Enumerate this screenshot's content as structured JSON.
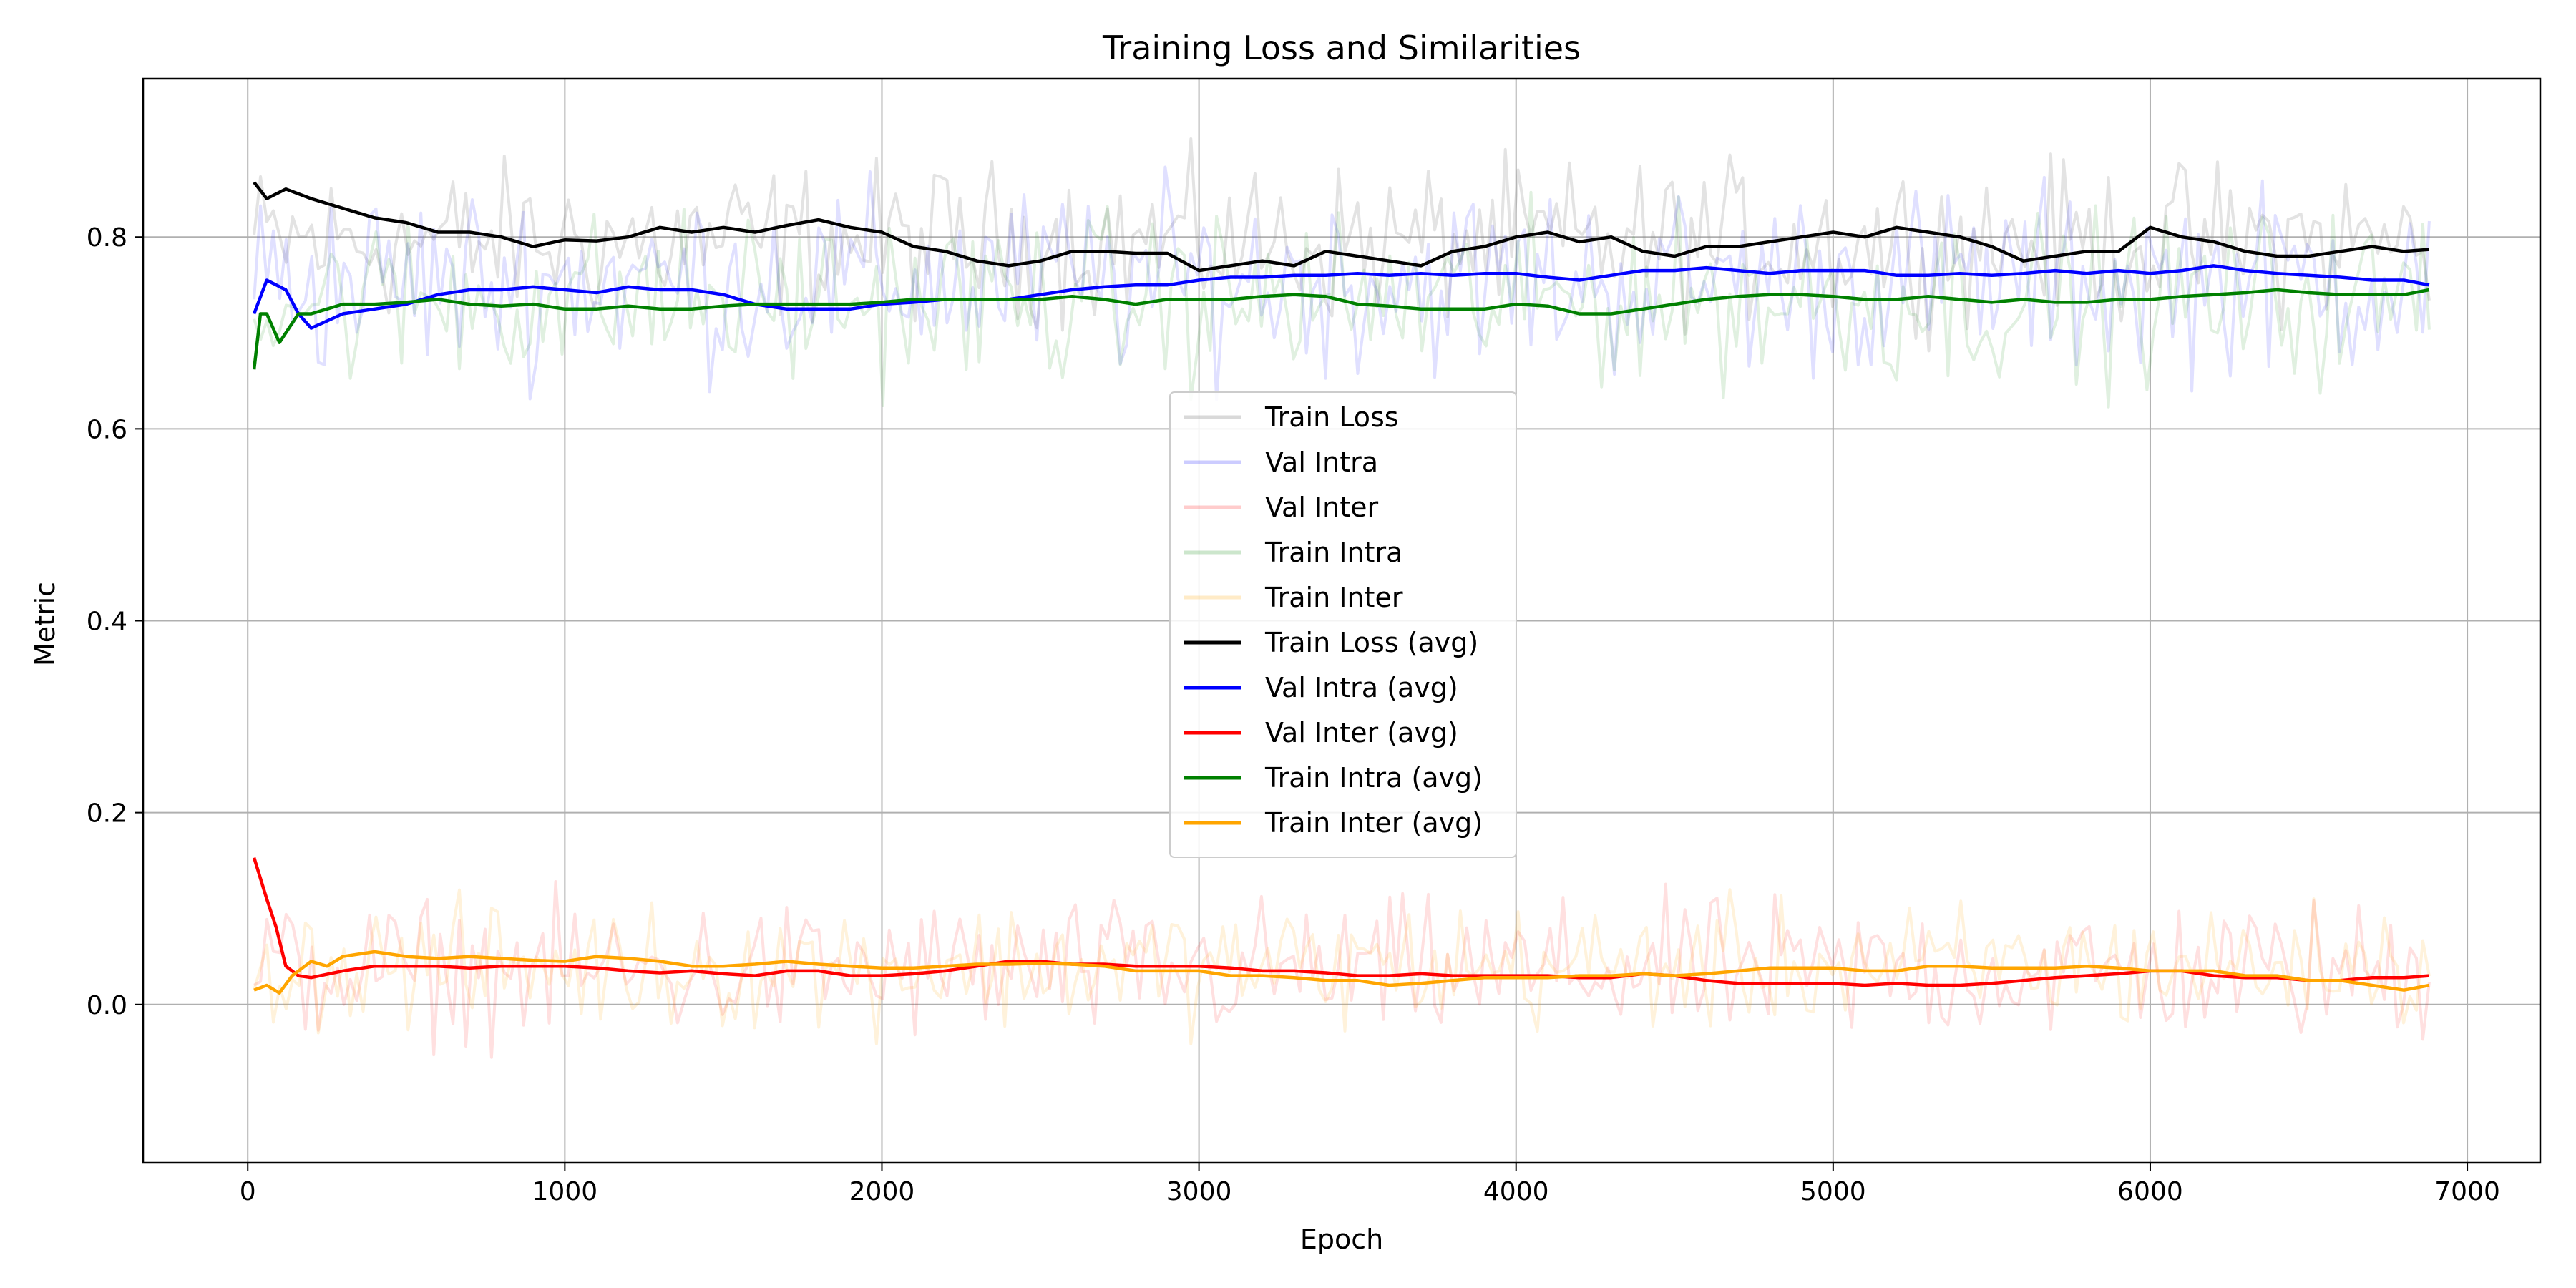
{
  "chart_data": {
    "type": "line",
    "title": "Training Loss and Similarities",
    "xlabel": "Epoch",
    "ylabel": "Metric",
    "xlim": [
      -330,
      7230
    ],
    "ylim": [
      -0.165,
      0.965
    ],
    "xticks": [
      0,
      1000,
      2000,
      3000,
      4000,
      5000,
      6000,
      7000
    ],
    "yticks": [
      0.0,
      0.2,
      0.4,
      0.6,
      0.8
    ],
    "xtick_labels": [
      "0",
      "1000",
      "2000",
      "3000",
      "4000",
      "5000",
      "6000",
      "7000"
    ],
    "ytick_labels": [
      "0.0",
      "0.2",
      "0.4",
      "0.6",
      "0.8"
    ],
    "grid": true,
    "legend_position": "center",
    "x_start": 20,
    "x_end": 6880,
    "raw_series": [
      {
        "name": "Train Loss",
        "color": "#808080",
        "opacity": 0.22,
        "center": 0.795,
        "spread": 0.05,
        "min": 0.65,
        "max": 0.92
      },
      {
        "name": "Val Intra",
        "color": "#0000ff",
        "opacity": 0.12,
        "center": 0.755,
        "spread": 0.06,
        "min": 0.54,
        "max": 0.89
      },
      {
        "name": "Val Inter",
        "color": "#ff0000",
        "opacity": 0.12,
        "center": 0.035,
        "spread": 0.045,
        "min": -0.1,
        "max": 0.18
      },
      {
        "name": "Train Intra",
        "color": "#008000",
        "opacity": 0.12,
        "center": 0.735,
        "spread": 0.055,
        "min": 0.56,
        "max": 0.88
      },
      {
        "name": "Train Inter",
        "color": "#ffa500",
        "opacity": 0.14,
        "center": 0.04,
        "spread": 0.04,
        "min": -0.11,
        "max": 0.23
      }
    ],
    "series": [
      {
        "name": "Train Loss (avg)",
        "color": "#000000",
        "x": [
          20,
          60,
          120,
          200,
          300,
          400,
          500,
          600,
          700,
          800,
          900,
          1000,
          1100,
          1200,
          1300,
          1400,
          1500,
          1600,
          1700,
          1800,
          1900,
          2000,
          2100,
          2200,
          2300,
          2400,
          2500,
          2600,
          2700,
          2800,
          2900,
          3000,
          3100,
          3200,
          3300,
          3400,
          3500,
          3600,
          3700,
          3800,
          3900,
          4000,
          4100,
          4200,
          4300,
          4400,
          4500,
          4600,
          4700,
          4800,
          4900,
          5000,
          5100,
          5200,
          5300,
          5400,
          5500,
          5600,
          5700,
          5800,
          5900,
          6000,
          6100,
          6200,
          6300,
          6400,
          6500,
          6600,
          6700,
          6800,
          6880
        ],
        "values": [
          0.857,
          0.84,
          0.85,
          0.84,
          0.83,
          0.82,
          0.815,
          0.805,
          0.805,
          0.8,
          0.79,
          0.797,
          0.796,
          0.8,
          0.81,
          0.805,
          0.81,
          0.805,
          0.812,
          0.818,
          0.81,
          0.805,
          0.79,
          0.785,
          0.775,
          0.77,
          0.775,
          0.785,
          0.785,
          0.783,
          0.783,
          0.765,
          0.77,
          0.775,
          0.77,
          0.785,
          0.78,
          0.775,
          0.77,
          0.785,
          0.79,
          0.8,
          0.805,
          0.795,
          0.8,
          0.785,
          0.78,
          0.79,
          0.79,
          0.795,
          0.8,
          0.805,
          0.8,
          0.81,
          0.805,
          0.8,
          0.79,
          0.775,
          0.78,
          0.785,
          0.785,
          0.81,
          0.8,
          0.795,
          0.785,
          0.78,
          0.78,
          0.785,
          0.79,
          0.785,
          0.787
        ]
      },
      {
        "name": "Val Intra (avg)",
        "color": "#0000ff",
        "x": [
          20,
          60,
          120,
          160,
          200,
          300,
          400,
          500,
          600,
          700,
          800,
          900,
          1000,
          1100,
          1200,
          1300,
          1400,
          1500,
          1600,
          1700,
          1800,
          1900,
          2000,
          2100,
          2200,
          2300,
          2400,
          2500,
          2600,
          2700,
          2800,
          2900,
          3000,
          3100,
          3200,
          3300,
          3400,
          3500,
          3600,
          3700,
          3800,
          3900,
          4000,
          4100,
          4200,
          4300,
          4400,
          4500,
          4600,
          4700,
          4800,
          4900,
          5000,
          5100,
          5200,
          5300,
          5400,
          5500,
          5600,
          5700,
          5800,
          5900,
          6000,
          6100,
          6200,
          6300,
          6400,
          6500,
          6600,
          6700,
          6800,
          6880
        ],
        "values": [
          0.72,
          0.755,
          0.745,
          0.72,
          0.705,
          0.72,
          0.725,
          0.73,
          0.74,
          0.745,
          0.745,
          0.748,
          0.745,
          0.742,
          0.748,
          0.745,
          0.745,
          0.74,
          0.73,
          0.725,
          0.725,
          0.725,
          0.73,
          0.732,
          0.735,
          0.735,
          0.735,
          0.74,
          0.745,
          0.748,
          0.75,
          0.75,
          0.755,
          0.758,
          0.758,
          0.76,
          0.76,
          0.762,
          0.76,
          0.762,
          0.76,
          0.762,
          0.762,
          0.758,
          0.755,
          0.76,
          0.765,
          0.765,
          0.768,
          0.765,
          0.762,
          0.765,
          0.765,
          0.765,
          0.76,
          0.76,
          0.762,
          0.76,
          0.762,
          0.765,
          0.762,
          0.765,
          0.762,
          0.765,
          0.77,
          0.765,
          0.762,
          0.76,
          0.758,
          0.755,
          0.755,
          0.75
        ]
      },
      {
        "name": "Val Inter (avg)",
        "color": "#ff0000",
        "x": [
          20,
          60,
          90,
          120,
          160,
          200,
          300,
          400,
          500,
          600,
          700,
          800,
          900,
          1000,
          1100,
          1200,
          1300,
          1400,
          1500,
          1600,
          1700,
          1800,
          1900,
          2000,
          2100,
          2200,
          2300,
          2400,
          2500,
          2600,
          2700,
          2800,
          2900,
          3000,
          3100,
          3200,
          3300,
          3400,
          3500,
          3600,
          3700,
          3800,
          3900,
          4000,
          4100,
          4200,
          4300,
          4400,
          4500,
          4600,
          4700,
          4800,
          4900,
          5000,
          5100,
          5200,
          5300,
          5400,
          5500,
          5600,
          5700,
          5800,
          5900,
          6000,
          6100,
          6200,
          6300,
          6400,
          6500,
          6600,
          6700,
          6800,
          6880
        ],
        "values": [
          0.153,
          0.11,
          0.08,
          0.04,
          0.03,
          0.028,
          0.035,
          0.04,
          0.04,
          0.04,
          0.038,
          0.04,
          0.04,
          0.04,
          0.038,
          0.035,
          0.033,
          0.035,
          0.032,
          0.03,
          0.035,
          0.035,
          0.03,
          0.03,
          0.032,
          0.035,
          0.04,
          0.045,
          0.045,
          0.042,
          0.042,
          0.04,
          0.04,
          0.04,
          0.038,
          0.035,
          0.035,
          0.033,
          0.03,
          0.03,
          0.032,
          0.03,
          0.03,
          0.03,
          0.03,
          0.028,
          0.028,
          0.032,
          0.03,
          0.025,
          0.022,
          0.022,
          0.022,
          0.022,
          0.02,
          0.022,
          0.02,
          0.02,
          0.022,
          0.025,
          0.028,
          0.03,
          0.032,
          0.035,
          0.035,
          0.03,
          0.028,
          0.028,
          0.025,
          0.025,
          0.028,
          0.028,
          0.03
        ]
      },
      {
        "name": "Train Intra (avg)",
        "color": "#008000",
        "x": [
          20,
          40,
          60,
          100,
          160,
          200,
          250,
          300,
          400,
          500,
          600,
          700,
          800,
          900,
          1000,
          1100,
          1200,
          1300,
          1400,
          1500,
          1600,
          1700,
          1800,
          1900,
          2000,
          2100,
          2200,
          2300,
          2400,
          2500,
          2600,
          2700,
          2800,
          2900,
          3000,
          3100,
          3200,
          3300,
          3400,
          3500,
          3600,
          3700,
          3800,
          3900,
          4000,
          4100,
          4200,
          4300,
          4400,
          4500,
          4600,
          4700,
          4800,
          4900,
          5000,
          5100,
          5200,
          5300,
          5400,
          5500,
          5600,
          5700,
          5800,
          5900,
          6000,
          6100,
          6200,
          6300,
          6400,
          6500,
          6600,
          6700,
          6800,
          6880
        ],
        "values": [
          0.662,
          0.72,
          0.72,
          0.69,
          0.72,
          0.72,
          0.725,
          0.73,
          0.73,
          0.732,
          0.735,
          0.73,
          0.728,
          0.73,
          0.725,
          0.725,
          0.728,
          0.725,
          0.725,
          0.728,
          0.73,
          0.73,
          0.73,
          0.73,
          0.732,
          0.735,
          0.735,
          0.735,
          0.735,
          0.735,
          0.738,
          0.735,
          0.73,
          0.735,
          0.735,
          0.735,
          0.738,
          0.74,
          0.738,
          0.73,
          0.728,
          0.725,
          0.725,
          0.725,
          0.73,
          0.728,
          0.72,
          0.72,
          0.725,
          0.73,
          0.735,
          0.738,
          0.74,
          0.74,
          0.738,
          0.735,
          0.735,
          0.738,
          0.735,
          0.732,
          0.735,
          0.732,
          0.732,
          0.735,
          0.735,
          0.738,
          0.74,
          0.742,
          0.745,
          0.742,
          0.74,
          0.74,
          0.74,
          0.745
        ]
      },
      {
        "name": "Train Inter (avg)",
        "color": "#ffa500",
        "x": [
          20,
          60,
          100,
          140,
          200,
          250,
          300,
          400,
          500,
          600,
          700,
          800,
          900,
          1000,
          1100,
          1200,
          1300,
          1400,
          1500,
          1600,
          1700,
          1800,
          1900,
          2000,
          2100,
          2200,
          2300,
          2400,
          2500,
          2600,
          2700,
          2800,
          2900,
          3000,
          3100,
          3200,
          3300,
          3400,
          3500,
          3600,
          3700,
          3800,
          3900,
          4000,
          4100,
          4200,
          4300,
          4400,
          4500,
          4600,
          4700,
          4800,
          4900,
          5000,
          5100,
          5200,
          5300,
          5400,
          5500,
          5600,
          5700,
          5800,
          5900,
          6000,
          6100,
          6200,
          6300,
          6400,
          6500,
          6600,
          6700,
          6800,
          6880
        ],
        "values": [
          0.015,
          0.02,
          0.012,
          0.03,
          0.045,
          0.04,
          0.05,
          0.055,
          0.05,
          0.048,
          0.05,
          0.048,
          0.046,
          0.045,
          0.05,
          0.048,
          0.045,
          0.04,
          0.04,
          0.042,
          0.045,
          0.042,
          0.04,
          0.038,
          0.038,
          0.04,
          0.042,
          0.042,
          0.043,
          0.042,
          0.04,
          0.035,
          0.035,
          0.035,
          0.03,
          0.03,
          0.028,
          0.025,
          0.025,
          0.02,
          0.022,
          0.025,
          0.028,
          0.028,
          0.028,
          0.03,
          0.03,
          0.032,
          0.03,
          0.032,
          0.035,
          0.038,
          0.038,
          0.038,
          0.035,
          0.035,
          0.04,
          0.04,
          0.038,
          0.038,
          0.038,
          0.04,
          0.038,
          0.035,
          0.035,
          0.035,
          0.03,
          0.03,
          0.025,
          0.025,
          0.02,
          0.015,
          0.02
        ]
      }
    ]
  }
}
